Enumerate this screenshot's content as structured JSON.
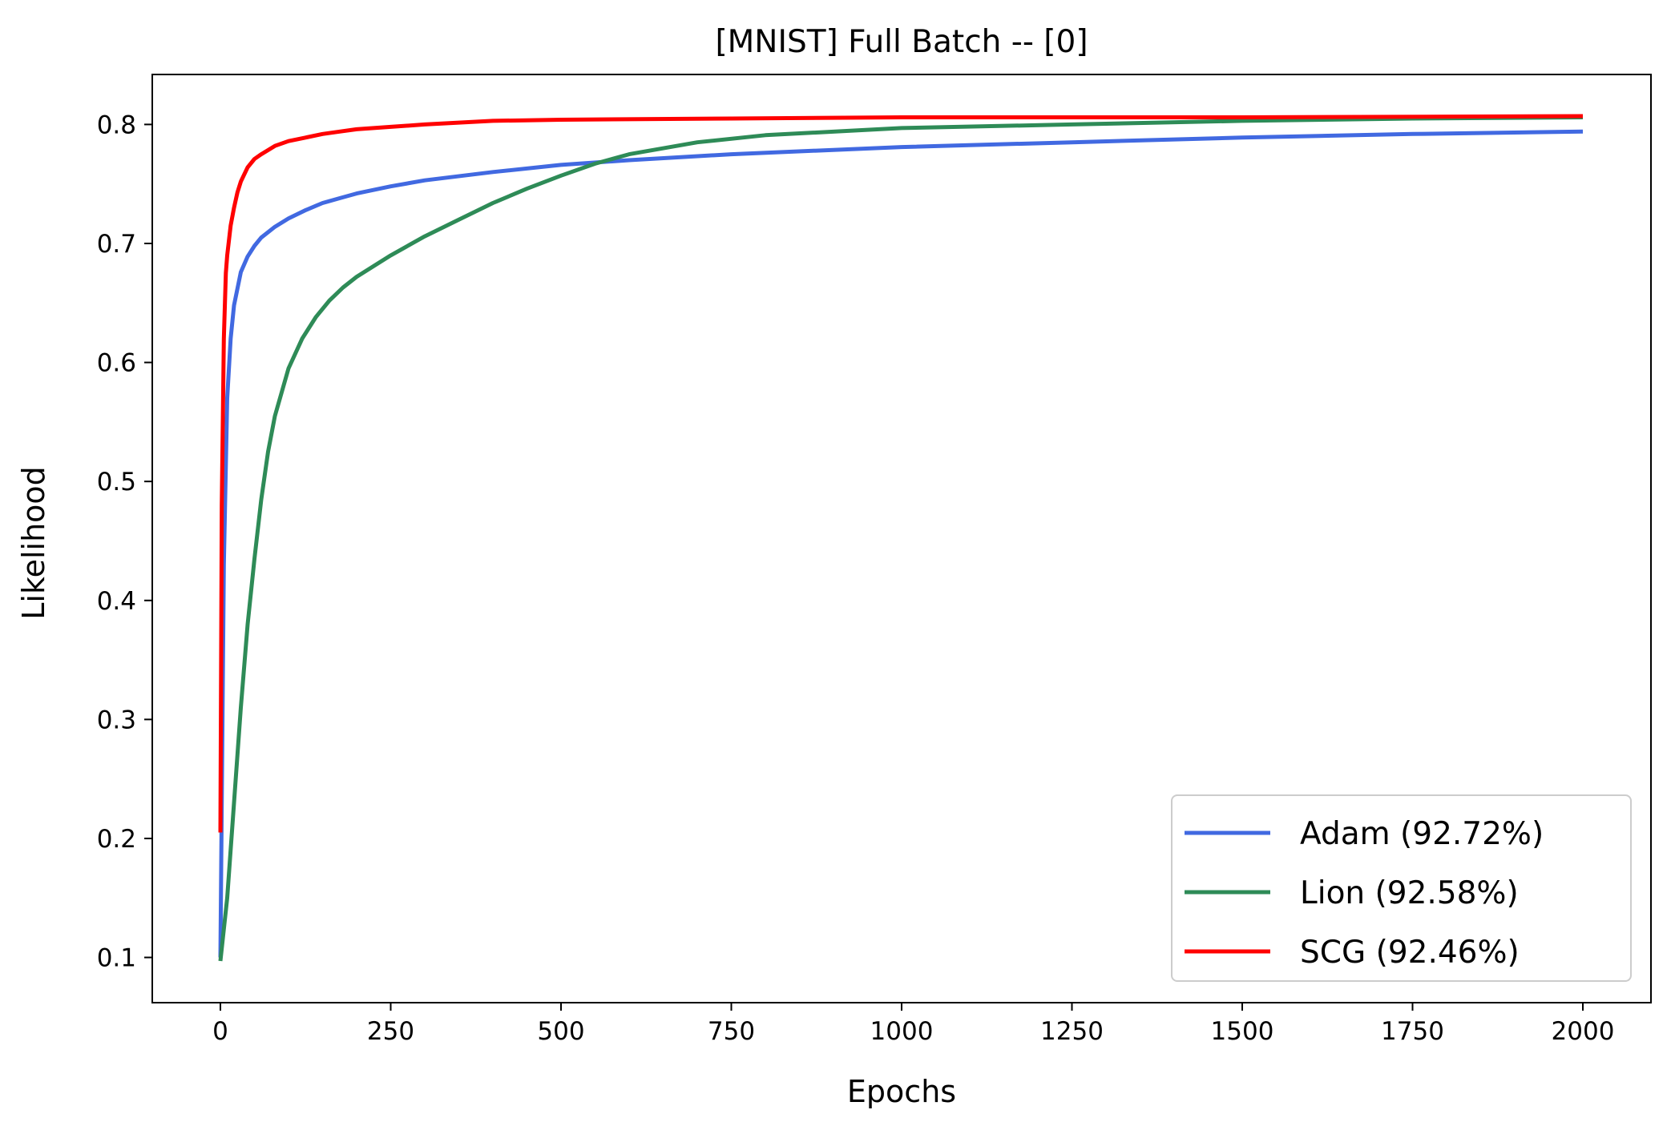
{
  "chart_data": {
    "type": "line",
    "title": "[MNIST] Full Batch -- [0]",
    "xlabel": "Epochs",
    "ylabel": "Likelihood",
    "xlim": [
      -100,
      2100
    ],
    "ylim": [
      0.062,
      0.842
    ],
    "xticks": [
      0,
      250,
      500,
      750,
      1000,
      1250,
      1500,
      1750,
      2000
    ],
    "yticks": [
      0.1,
      0.2,
      0.3,
      0.4,
      0.5,
      0.6,
      0.7,
      0.8
    ],
    "grid": false,
    "legend_position": "lower-right",
    "series": [
      {
        "name": "Adam (92.72%)",
        "color": "#4169e1",
        "x": [
          0,
          5,
          10,
          15,
          20,
          30,
          40,
          50,
          60,
          80,
          100,
          125,
          150,
          175,
          200,
          250,
          300,
          400,
          500,
          600,
          750,
          1000,
          1250,
          1500,
          1750,
          2000
        ],
        "y": [
          0.1,
          0.43,
          0.57,
          0.62,
          0.648,
          0.676,
          0.689,
          0.698,
          0.705,
          0.714,
          0.721,
          0.728,
          0.734,
          0.738,
          0.742,
          0.748,
          0.753,
          0.76,
          0.766,
          0.77,
          0.775,
          0.781,
          0.785,
          0.789,
          0.792,
          0.794
        ]
      },
      {
        "name": "Lion (92.58%)",
        "color": "#2e8b57",
        "x": [
          0,
          10,
          20,
          30,
          40,
          50,
          60,
          70,
          80,
          100,
          120,
          140,
          160,
          180,
          200,
          250,
          300,
          350,
          400,
          450,
          500,
          550,
          600,
          700,
          800,
          1000,
          1250,
          1500,
          1750,
          2000
        ],
        "y": [
          0.097,
          0.15,
          0.23,
          0.31,
          0.38,
          0.435,
          0.485,
          0.525,
          0.555,
          0.595,
          0.62,
          0.638,
          0.652,
          0.663,
          0.672,
          0.69,
          0.706,
          0.72,
          0.734,
          0.746,
          0.757,
          0.767,
          0.775,
          0.785,
          0.791,
          0.797,
          0.8,
          0.803,
          0.805,
          0.806
        ]
      },
      {
        "name": "SCG (92.46%)",
        "color": "#ff0000",
        "x": [
          0,
          2,
          5,
          8,
          10,
          15,
          20,
          25,
          30,
          40,
          50,
          60,
          80,
          100,
          125,
          150,
          175,
          200,
          250,
          300,
          400,
          500,
          750,
          1000,
          1500,
          2000
        ],
        "y": [
          0.205,
          0.48,
          0.62,
          0.675,
          0.69,
          0.715,
          0.73,
          0.743,
          0.752,
          0.764,
          0.771,
          0.775,
          0.782,
          0.786,
          0.789,
          0.792,
          0.794,
          0.796,
          0.798,
          0.8,
          0.803,
          0.804,
          0.805,
          0.806,
          0.806,
          0.807
        ]
      }
    ]
  }
}
